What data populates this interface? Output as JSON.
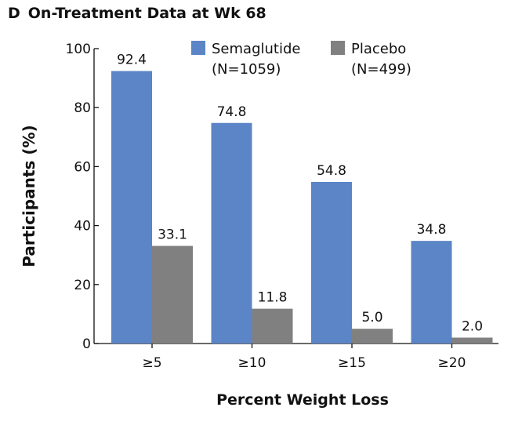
{
  "panel": {
    "letter": "D",
    "title": "On-Treatment Data at Wk 68"
  },
  "colors": {
    "semaglutide": "#5b85c6",
    "placebo": "#808080",
    "axis": "#111111"
  },
  "chart_data": {
    "type": "bar",
    "title": "On-Treatment Data at Wk 68",
    "xlabel": "Percent Weight Loss",
    "ylabel": "Participants (%)",
    "ylim": [
      0,
      100
    ],
    "yticks": [
      "0",
      "20",
      "40",
      "60",
      "80",
      "100"
    ],
    "categories": [
      "≥5",
      "≥10",
      "≥15",
      "≥20"
    ],
    "series": [
      {
        "name": "Semaglutide",
        "legend_line1": "Semaglutide",
        "legend_line2": "(N=1059)",
        "values": [
          92.4,
          74.8,
          54.8,
          34.8
        ],
        "labels": [
          "92.4",
          "74.8",
          "54.8",
          "34.8"
        ]
      },
      {
        "name": "Placebo",
        "legend_line1": "Placebo",
        "legend_line2": "(N=499)",
        "values": [
          33.1,
          11.8,
          5.0,
          2.0
        ],
        "labels": [
          "33.1",
          "11.8",
          "5.0",
          "2.0"
        ]
      }
    ],
    "grid": false,
    "legend_position": "top-right"
  }
}
